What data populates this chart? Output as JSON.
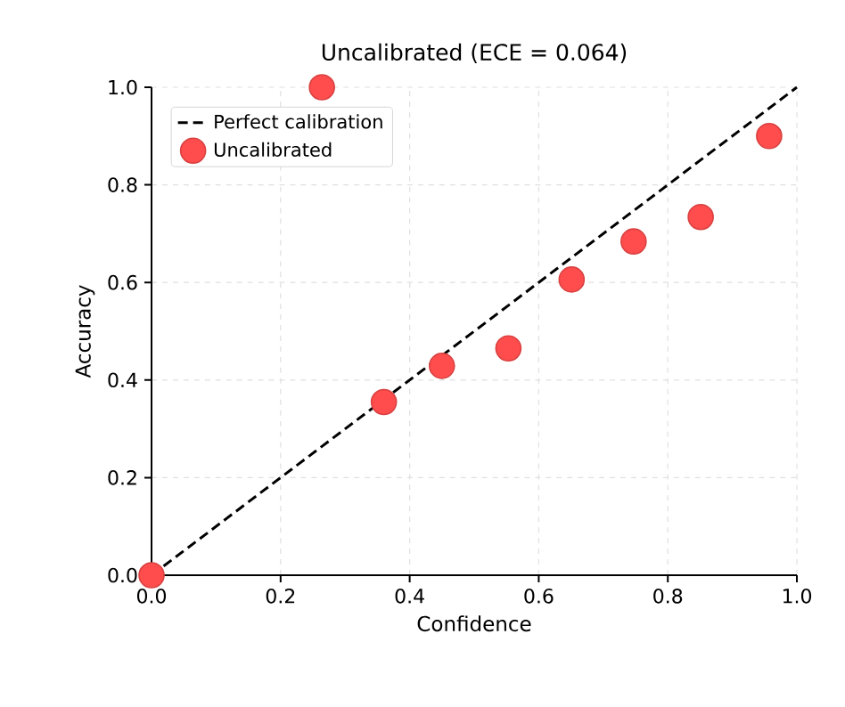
{
  "chart_data": {
    "type": "scatter",
    "title": "Uncalibrated (ECE = 0.064)",
    "xlabel": "Confidence",
    "ylabel": "Accuracy",
    "xlim": [
      0,
      1
    ],
    "ylim": [
      0,
      1
    ],
    "xticks": [
      {
        "value": 0,
        "label": "0.0"
      },
      {
        "value": 0.2,
        "label": "0.2"
      },
      {
        "value": 0.4,
        "label": "0.4"
      },
      {
        "value": 0.6,
        "label": "0.6"
      },
      {
        "value": 0.8,
        "label": "0.8"
      },
      {
        "value": 1,
        "label": "1.0"
      }
    ],
    "yticks": [
      {
        "value": 0,
        "label": "0.0"
      },
      {
        "value": 0.2,
        "label": "0.2"
      },
      {
        "value": 0.4,
        "label": "0.4"
      },
      {
        "value": 0.6,
        "label": "0.6"
      },
      {
        "value": 0.8,
        "label": "0.8"
      },
      {
        "value": 1,
        "label": "1.0"
      }
    ],
    "grid": true,
    "legend": "top left",
    "series": [
      {
        "name": "Perfect calibration",
        "type": "line",
        "x": [
          0,
          1
        ],
        "values": [
          0,
          1
        ],
        "color": "#000000",
        "line_style": "dashed",
        "marker": "none"
      },
      {
        "name": "Uncalibrated",
        "x": [
          0,
          0.264,
          0.36,
          0.45,
          0.553,
          0.651,
          0.747,
          0.851,
          0.957
        ],
        "values": [
          0,
          1.0,
          0.355,
          0.429,
          0.465,
          0.606,
          0.684,
          0.734,
          0.9
        ],
        "color": "#ff4d4d",
        "marker": "circle"
      }
    ]
  }
}
